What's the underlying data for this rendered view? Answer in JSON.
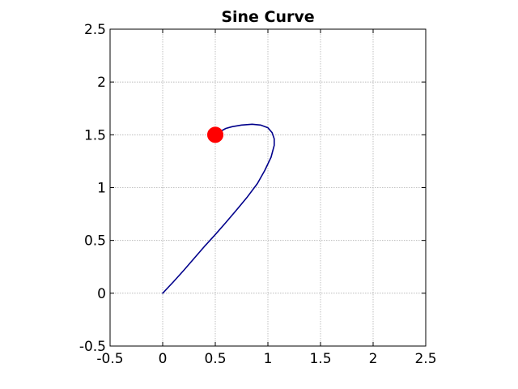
{
  "chart_data": {
    "type": "line",
    "title": "Sine Curve",
    "xlabel": "",
    "ylabel": "",
    "xlim": [
      -0.5,
      2.5
    ],
    "ylim": [
      -0.5,
      2.5
    ],
    "grid": true,
    "x_ticks": [
      "-0.5",
      "0",
      "0.5",
      "1",
      "1.5",
      "2",
      "2.5"
    ],
    "y_ticks": [
      "-0.5",
      "0",
      "0.5",
      "1",
      "1.5",
      "2",
      "2.5"
    ],
    "series": [
      {
        "color": "#00008b",
        "points": [
          [
            0.0,
            0.0
          ],
          [
            0.1,
            0.106
          ],
          [
            0.2,
            0.217
          ],
          [
            0.3,
            0.332
          ],
          [
            0.4,
            0.447
          ],
          [
            0.5,
            0.556
          ],
          [
            0.6,
            0.669
          ],
          [
            0.7,
            0.786
          ],
          [
            0.8,
            0.906
          ],
          [
            0.9,
            1.038
          ],
          [
            0.97,
            1.162
          ],
          [
            1.03,
            1.288
          ],
          [
            1.06,
            1.4
          ],
          [
            1.06,
            1.462
          ],
          [
            1.04,
            1.52
          ],
          [
            1.0,
            1.567
          ],
          [
            0.93,
            1.592
          ],
          [
            0.85,
            1.6
          ],
          [
            0.75,
            1.592
          ],
          [
            0.66,
            1.577
          ],
          [
            0.6,
            1.56
          ],
          [
            0.55,
            1.533
          ],
          [
            0.5,
            1.5
          ]
        ]
      }
    ],
    "marker": {
      "x": 0.5,
      "y": 1.5,
      "color": "#ff0000"
    }
  }
}
